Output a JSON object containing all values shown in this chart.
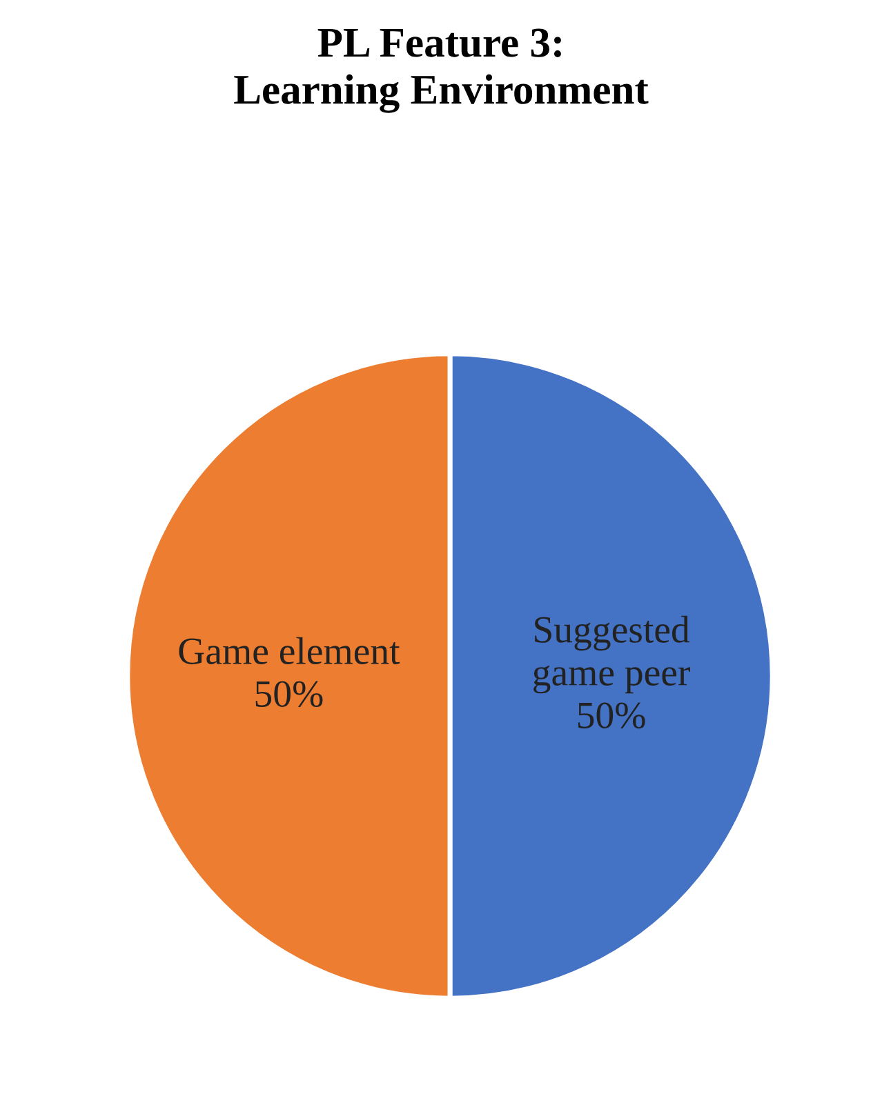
{
  "chart_data": {
    "type": "pie",
    "title": "PL Feature 3:\nLearning Environment",
    "categories": [
      "Suggested\ngame peer",
      "Game element"
    ],
    "values": [
      50,
      50
    ],
    "value_labels": [
      "50%",
      "50%"
    ],
    "colors": [
      "#4472c4",
      "#ed7d31"
    ]
  }
}
